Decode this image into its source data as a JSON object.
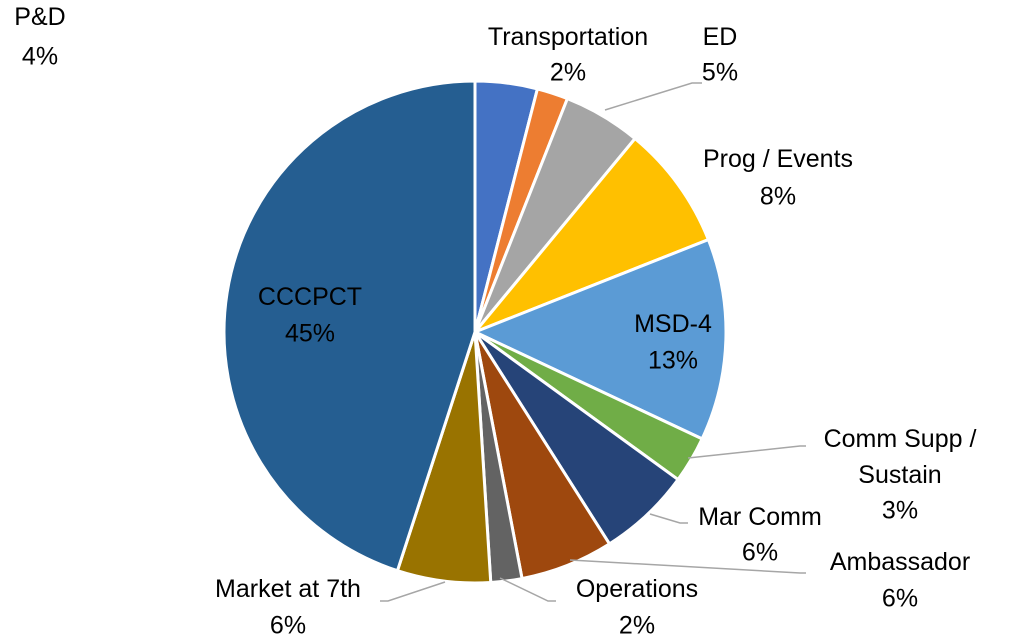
{
  "chart_data": {
    "type": "pie",
    "categories": [
      "P&D",
      "Transportation",
      "ED",
      "Prog / Events",
      "MSD-4",
      "Comm Supp /\nSustain",
      "Mar Comm",
      "Ambassador",
      "Operations",
      "Market at 7th",
      "CCCPCT"
    ],
    "values": [
      4,
      2,
      5,
      8,
      13,
      3,
      6,
      6,
      2,
      6,
      45
    ],
    "value_labels": [
      "4%",
      "2%",
      "5%",
      "8%",
      "13%",
      "3%",
      "6%",
      "6%",
      "2%",
      "6%",
      "45%"
    ],
    "colors": [
      "#4472c4",
      "#ed7d31",
      "#a5a5a5",
      "#ffc000",
      "#5b9bd5",
      "#70ad47",
      "#264478",
      "#9e480e",
      "#636363",
      "#997300",
      "#255e91"
    ]
  }
}
